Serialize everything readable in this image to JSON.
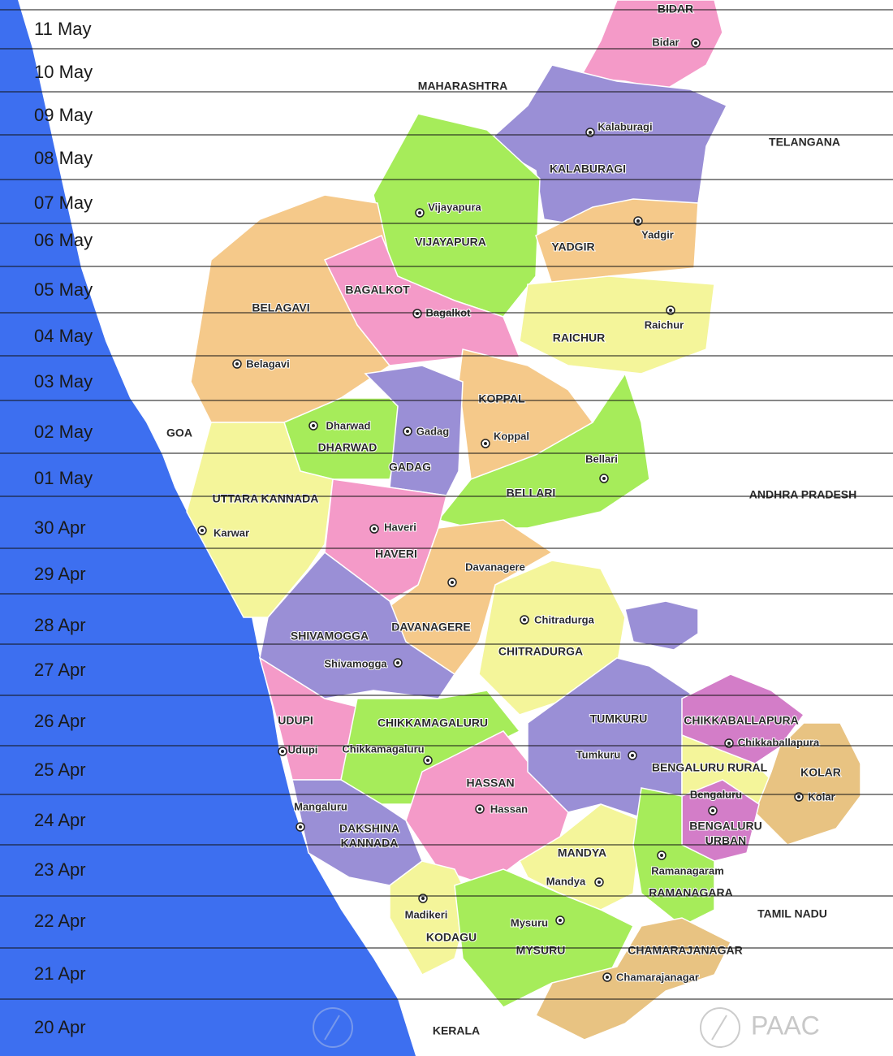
{
  "dates": [
    "11  May",
    "10  May",
    "09 May",
    "08 May",
    "07 May",
    "06 May",
    "05 May",
    "04 May",
    "03 May",
    "02 May",
    "01 May",
    "30 Apr",
    "29 Apr",
    "28 Apr",
    "27 Apr",
    "26 Apr",
    "25 Apr",
    "24 Apr",
    "23 Apr",
    "22 Apr",
    "21 Apr",
    "20 Apr"
  ],
  "states": [
    "MAHARASHTRA",
    "TELANGANA",
    "GOA",
    "ANDHRA PRADESH",
    "TAMIL NADU",
    "KERALA"
  ],
  "districts": [
    [
      "BIDAR"
    ],
    [
      "KALABURAGI"
    ],
    [
      "VIJAYAPURA"
    ],
    [
      "YADGIR"
    ],
    [
      "RAICHUR"
    ],
    [
      "BELAGAVI"
    ],
    [
      "BAGALKOT"
    ],
    [
      "KOPPAL"
    ],
    [
      "DHARWAD"
    ],
    [
      "GADAG"
    ],
    [
      "BELLARI"
    ],
    [
      "UTTARA KANNADA"
    ],
    [
      "HAVERI"
    ],
    [
      "DAVANAGERE"
    ],
    [
      "CHITRADURGA"
    ],
    [
      "SHIVAMOGGA"
    ],
    [
      "UDUPI"
    ],
    [
      "CHIKKAMAGALURU"
    ],
    [
      "HASSAN"
    ],
    [
      "DAKSHINA",
      "KANNADA"
    ],
    [
      "TUMKURU"
    ],
    [
      "CHIKKABALLAPURA"
    ],
    [
      "BENGALURU RURAL"
    ],
    [
      "KOLAR"
    ],
    [
      "BENGALURU",
      "URBAN"
    ],
    [
      "MANDYA"
    ],
    [
      "RAMANAGARA"
    ],
    [
      "KODAGU"
    ],
    [
      "MYSURU"
    ],
    [
      "CHAMARAJANAGAR"
    ]
  ],
  "cities": [
    "Bidar",
    "Kalaburagi",
    "Vijayapura",
    "Yadgir",
    "Raichur",
    "Bagalkot",
    "Belagavi",
    "Dharwad",
    "Gadag",
    "Koppal",
    "Bellari",
    "Karwar",
    "Haveri",
    "Davanagere",
    "Chitradurga",
    "Shivamogga",
    "Udupi",
    "Chikkamagaluru",
    "Tumkuru",
    "Chikkaballapura",
    "Kolar",
    "Bengaluru",
    "Hassan",
    "Mangaluru",
    "Ramanagaram",
    "Mandya",
    "Madikeri",
    "Mysuru",
    "Chamarajanagar"
  ],
  "watermark": "PAAC"
}
